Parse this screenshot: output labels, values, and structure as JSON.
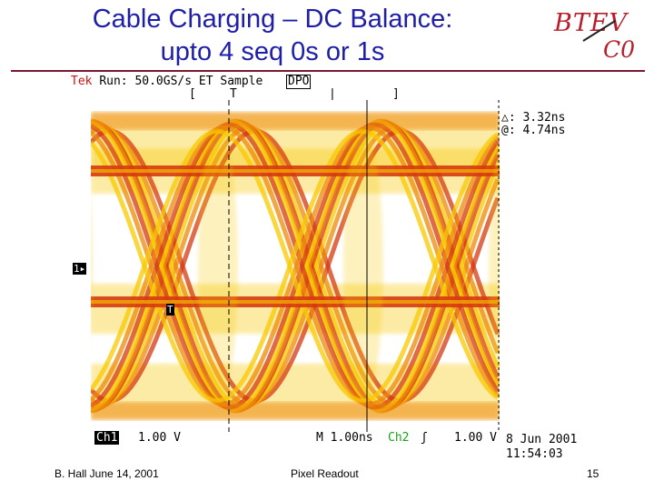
{
  "slide": {
    "title_line1": "Cable Charging – DC Balance:",
    "title_line2": "upto 4 seq 0s or 1s",
    "logo_top": "BTEV",
    "logo_bottom": "C0"
  },
  "scope": {
    "brand": "Tek",
    "run_status": "Run: 50.0GS/s ET Sample",
    "mode_badge": "DPO",
    "bracket_left": "[",
    "trigger_marker": "T",
    "bracket_right": "]",
    "delta_readout": "△: 3.32ns",
    "at_readout": "@: 4.74ns",
    "ch1_ground_marker": "1▸",
    "trigger_level_marker": "T",
    "ch1_label": "Ch1",
    "ch1_scale": "1.00 V",
    "timebase": "M 1.00ns",
    "ch2_label": "Ch2",
    "trigger_slope": "ʃ",
    "trigger_volts": "1.00 V",
    "date": "8 Jun 2001",
    "time": "11:54:03",
    "colors": {
      "trace_dark": "#d63a10",
      "trace_mid": "#ee8a08",
      "trace_light": "#f8c800",
      "brand": "#d01010",
      "ch2": "#1aa01a"
    }
  },
  "footer": {
    "author_date": "B. Hall  June 14, 2001",
    "center": "Pixel Readout",
    "page_number": "15"
  }
}
